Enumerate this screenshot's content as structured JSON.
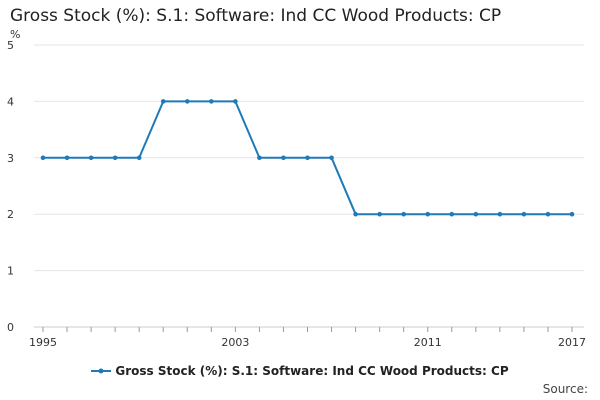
{
  "chart_data": {
    "type": "line",
    "title": "Gross Stock (%): S.1: Software: Ind CC Wood Products: CP",
    "ylabel": "%",
    "xlabel": "",
    "x": [
      1995,
      1996,
      1997,
      1998,
      1999,
      2000,
      2001,
      2002,
      2003,
      2004,
      2005,
      2006,
      2007,
      2008,
      2009,
      2010,
      2011,
      2012,
      2013,
      2014,
      2015,
      2016,
      2017
    ],
    "series": [
      {
        "name": "Gross Stock (%): S.1: Software: Ind CC Wood Products: CP",
        "values": [
          3,
          3,
          3,
          3,
          3,
          4,
          4,
          4,
          4,
          3,
          3,
          3,
          3,
          2,
          2,
          2,
          2,
          2,
          2,
          2,
          2,
          2,
          2
        ]
      }
    ],
    "xticks": [
      1995,
      2003,
      2011,
      2017
    ],
    "xlim": [
      1995,
      2017
    ],
    "ylim": [
      0,
      5
    ],
    "yticks": [
      0,
      1,
      2,
      3,
      4,
      5
    ],
    "grid": true,
    "legend_position": "bottom",
    "line_color": "#1f7ab8"
  },
  "footer": {
    "source": "Source:"
  }
}
